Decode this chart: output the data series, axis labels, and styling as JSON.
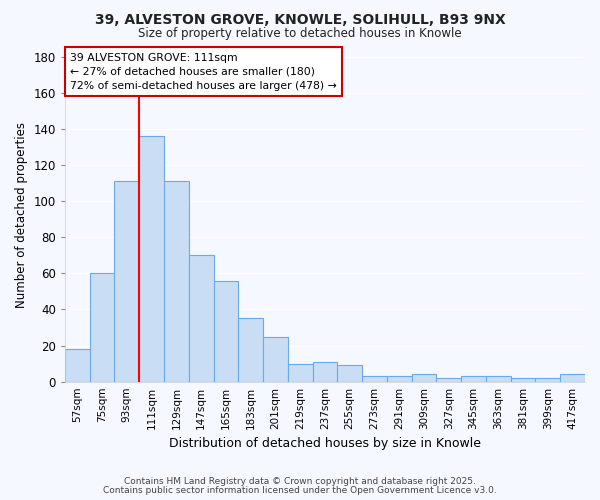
{
  "title1": "39, ALVESTON GROVE, KNOWLE, SOLIHULL, B93 9NX",
  "title2": "Size of property relative to detached houses in Knowle",
  "xlabel": "Distribution of detached houses by size in Knowle",
  "ylabel": "Number of detached properties",
  "categories": [
    "57sqm",
    "75sqm",
    "93sqm",
    "111sqm",
    "129sqm",
    "147sqm",
    "165sqm",
    "183sqm",
    "201sqm",
    "219sqm",
    "237sqm",
    "255sqm",
    "273sqm",
    "291sqm",
    "309sqm",
    "327sqm",
    "345sqm",
    "363sqm",
    "381sqm",
    "399sqm",
    "417sqm"
  ],
  "values": [
    18,
    60,
    111,
    136,
    111,
    70,
    56,
    35,
    25,
    10,
    11,
    9,
    3,
    3,
    4,
    2,
    3,
    3,
    2,
    2,
    4
  ],
  "bar_color": "#c9ddf5",
  "bar_edge_color": "#6aaae8",
  "background_color": "#f5f8ff",
  "grid_color": "#ffffff",
  "red_line_index": 3,
  "annotation_text": "39 ALVESTON GROVE: 111sqm\n← 27% of detached houses are smaller (180)\n72% of semi-detached houses are larger (478) →",
  "annotation_box_color": "#ffffff",
  "annotation_box_edge_color": "#cc0000",
  "ylim": [
    0,
    185
  ],
  "yticks": [
    0,
    20,
    40,
    60,
    80,
    100,
    120,
    140,
    160,
    180
  ],
  "footnote1": "Contains HM Land Registry data © Crown copyright and database right 2025.",
  "footnote2": "Contains public sector information licensed under the Open Government Licence v3.0."
}
